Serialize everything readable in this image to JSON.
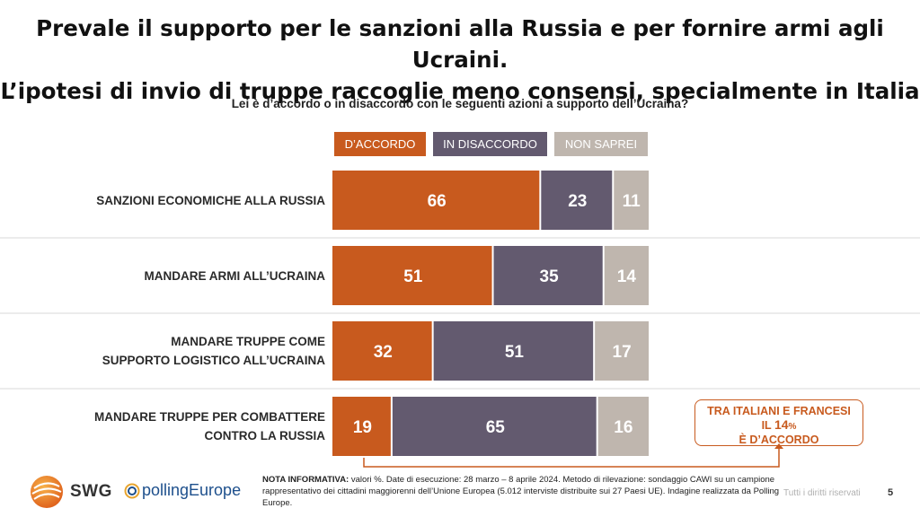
{
  "header": {
    "title_line1": "Prevale il supporto per le sanzioni alla Russia e per fornire armi agli Ucraini.",
    "title_line2": "L’ipotesi di invio di truppe raccoglie meno consensi, specialmente in Italia"
  },
  "chart_data": {
    "type": "bar",
    "orientation": "horizontal",
    "stacked": true,
    "title": "Lei è d’accordo o in disaccordo con le seguenti azioni a supporto dell’Ucraina?",
    "xlim": [
      0,
      100
    ],
    "legend_position": "top",
    "categories": [
      [
        "SANZIONI ECONOMICHE ALLA RUSSIA"
      ],
      [
        "MANDARE ARMI ALL’UCRAINA"
      ],
      [
        "MANDARE TRUPPE COME",
        "SUPPORTO LOGISTICO ALL’UCRAINA"
      ],
      [
        "MANDARE TRUPPE PER COMBATTERE",
        "CONTRO LA RUSSIA"
      ]
    ],
    "series": [
      {
        "name": "D’ACCORDO",
        "color": "#c85a1e",
        "values": [
          66,
          51,
          32,
          19
        ]
      },
      {
        "name": "IN DISACCORDO",
        "color": "#635a6f",
        "values": [
          23,
          35,
          51,
          65
        ]
      },
      {
        "name": "NON SAPREI",
        "color": "#bfb6ae",
        "values": [
          11,
          14,
          17,
          16
        ]
      }
    ],
    "annotation": {
      "line1": "TRA ITALIANI E FRANCESI",
      "line2_prefix": "IL ",
      "line2_value": "14",
      "line2_unit": "%",
      "line3": "È D’ACCORDO"
    }
  },
  "footer": {
    "note_label": "NOTA INFORMATIVA:",
    "note_text": "valori %. Date di esecuzione: 28 marzo – 8 aprile 2024. Metodo di rilevazione: sondaggio CAWI su un campione rappresentativo dei cittadini maggiorenni dell’Unione Europea (5.012 interviste distribuite sui 27 Paesi UE). Indagine realizzata da Polling Europe.",
    "rights": "Tutti i diritti riservati",
    "page_number": "5",
    "logo_swg": "SWG",
    "logo_polling": "pollingEurope"
  }
}
